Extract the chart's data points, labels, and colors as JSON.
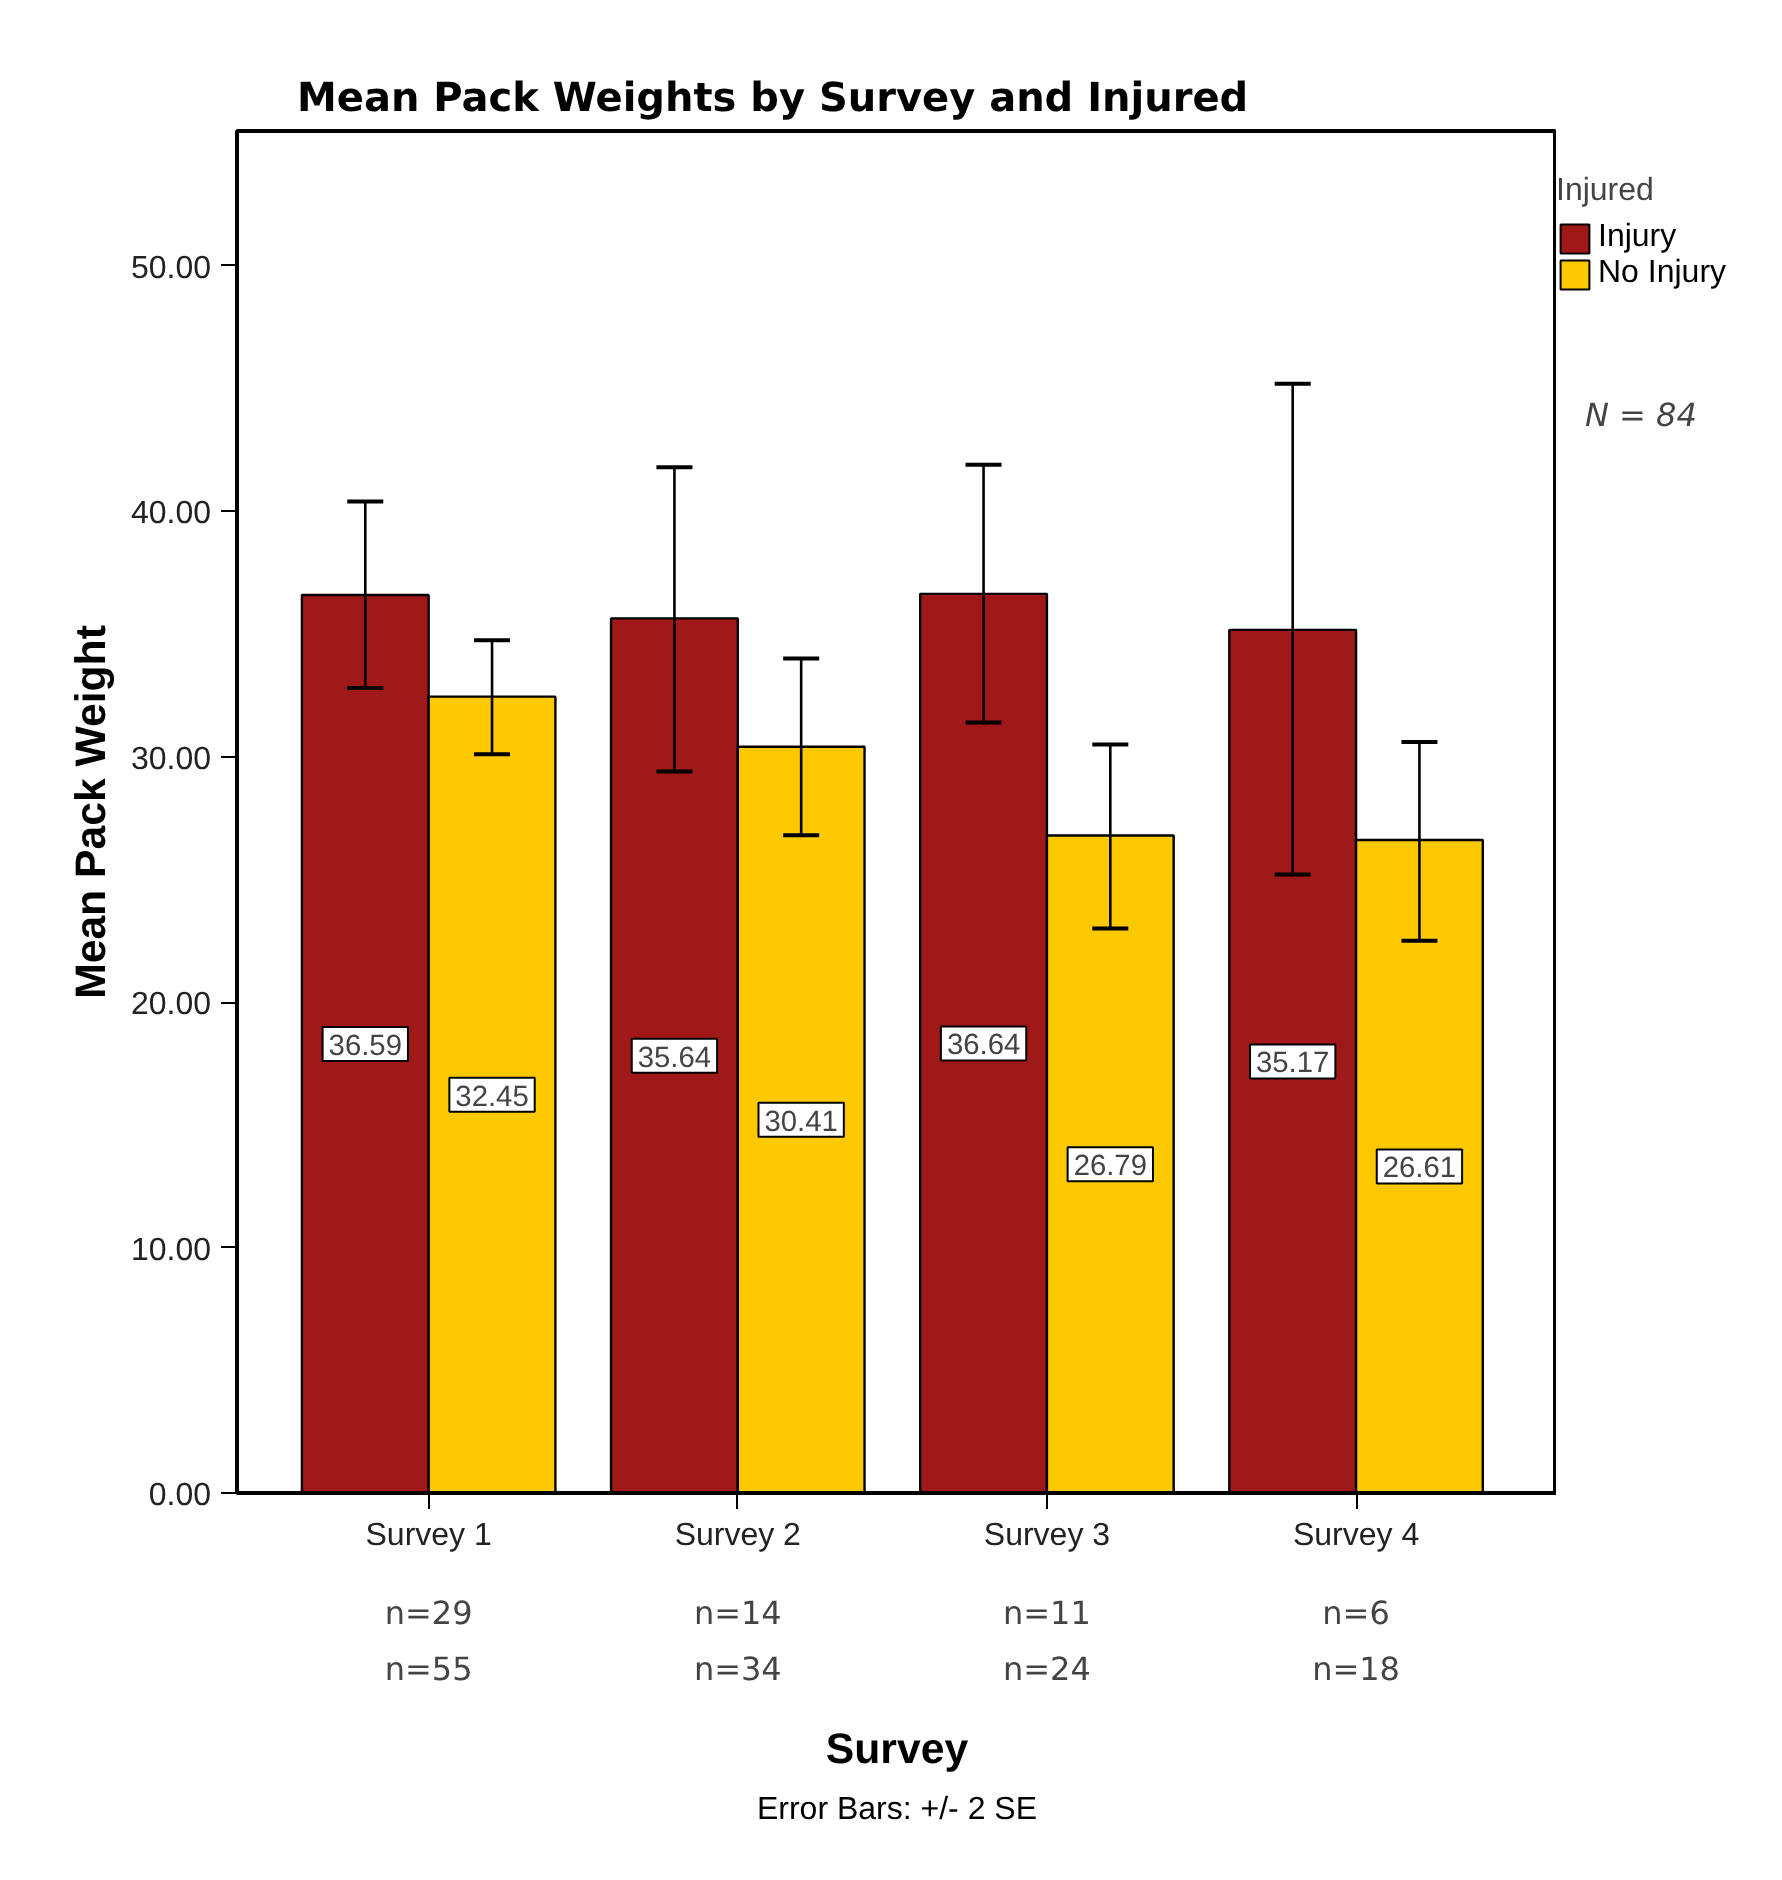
{
  "chart_data": {
    "type": "bar",
    "title": "Mean Pack Weights by Survey and Injured",
    "xlabel": "Survey",
    "ylabel": "Mean Pack Weight",
    "legend_title": "Injured",
    "categories": [
      "Survey 1",
      "Survey 2",
      "Survey 3",
      "Survey 4"
    ],
    "series": [
      {
        "name": "Injury",
        "color": "#a01818",
        "values": [
          36.59,
          35.64,
          36.64,
          35.17
        ],
        "errors": [
          [
            32.8,
            40.4
          ],
          [
            29.4,
            41.8
          ],
          [
            31.4,
            41.9
          ],
          [
            25.2,
            45.2
          ]
        ]
      },
      {
        "name": "No Injury",
        "color": "#fcc800",
        "values": [
          32.45,
          30.41,
          26.79,
          26.61
        ],
        "errors": [
          [
            30.1,
            34.75
          ],
          [
            26.8,
            34.0
          ],
          [
            23.0,
            30.5
          ],
          [
            22.5,
            30.6
          ]
        ]
      }
    ],
    "data_labels": true,
    "ylim": [
      0,
      55.5
    ],
    "yticks": [
      {
        "value": 0,
        "label": "0.00"
      },
      {
        "value": 10,
        "label": "10.00"
      },
      {
        "value": 20,
        "label": "20.00"
      },
      {
        "value": 30,
        "label": "30.00"
      },
      {
        "value": 40,
        "label": "40.00"
      },
      {
        "value": 50,
        "label": "50.00"
      }
    ],
    "grid": false,
    "legend": "top right",
    "annotations": [
      "N = 84",
      "n=29",
      "n=14",
      "n=11",
      "n=6",
      "n=55",
      "n=34",
      "n=24",
      "n=18",
      "Error Bars: +/- 2 SE"
    ]
  }
}
